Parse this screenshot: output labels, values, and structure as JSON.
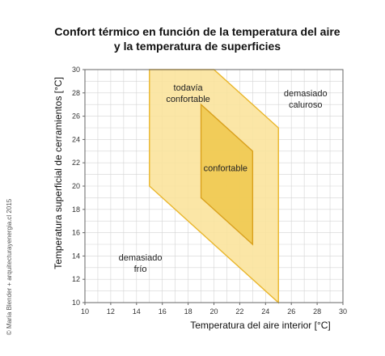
{
  "chart_data": {
    "type": "area",
    "title": [
      "Confort térmico en función de la temperatura del aire",
      "y la temperatura de superficies"
    ],
    "xlabel": "Temperatura  del aire interior [°C]",
    "ylabel": "Temperatura  superficial  de  cerramientos  [°C]",
    "xlim": [
      10,
      30
    ],
    "ylim": [
      10,
      30
    ],
    "x_ticks": [
      10,
      12,
      14,
      16,
      18,
      20,
      22,
      24,
      26,
      28,
      30
    ],
    "y_ticks": [
      10,
      12,
      14,
      16,
      18,
      20,
      22,
      24,
      26,
      28,
      30
    ],
    "grid": true,
    "regions": [
      {
        "name": "todavía confortable",
        "label_lines": [
          "todavía",
          "confortable"
        ],
        "color": "#fbe39a",
        "stroke": "#e9b62c",
        "polygon": [
          [
            15,
            30
          ],
          [
            20,
            30
          ],
          [
            25,
            25
          ],
          [
            25,
            10
          ],
          [
            15,
            20
          ]
        ],
        "label_at": [
          18,
          28.2
        ]
      },
      {
        "name": "confortable",
        "label_lines": [
          "confortable"
        ],
        "color": "#efc84e",
        "stroke": "#d9a11e",
        "polygon": [
          [
            19,
            27
          ],
          [
            23,
            23
          ],
          [
            23,
            15
          ],
          [
            19,
            19
          ]
        ],
        "label_at": [
          20.9,
          21.3
        ]
      }
    ],
    "annotations": [
      {
        "lines": [
          "demasiado",
          "caluroso"
        ],
        "at": [
          27.1,
          27.7
        ]
      },
      {
        "lines": [
          "demasiado",
          "frío"
        ],
        "at": [
          14.3,
          13.6
        ]
      }
    ]
  },
  "credit": "© María Blender + arquitecturayenergia.cl 2015"
}
